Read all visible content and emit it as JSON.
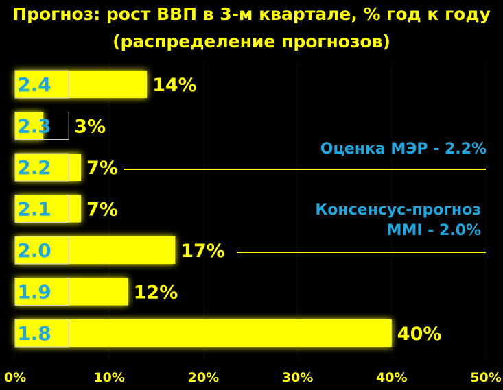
{
  "colors": {
    "background": "#000000",
    "bar": "#ffff00",
    "glow": "#ffff00",
    "category_label": "#1fa8e0",
    "value_label": "#ffff00",
    "annotation": "#1fa8e0",
    "reference_line": "#ffff00",
    "grid": "#2a2a2a"
  },
  "chart_data": {
    "type": "bar",
    "orientation": "horizontal",
    "title": "Прогноз: рост ВВП в 3-м квартале, % год к году",
    "subtitle": "(распределение прогнозов)",
    "categories": [
      "2.4",
      "2.3",
      "2.2",
      "2.1",
      "2.0",
      "1.9",
      "1.8"
    ],
    "values": [
      14,
      3,
      7,
      7,
      17,
      12,
      40
    ],
    "value_labels": [
      "14%",
      "3%",
      "7%",
      "7%",
      "17%",
      "12%",
      "40%"
    ],
    "xlim": [
      0,
      50
    ],
    "xticks": [
      0,
      10,
      20,
      30,
      40,
      50
    ],
    "xtick_labels": [
      "0%",
      "10%",
      "20%",
      "30%",
      "40%",
      "50%"
    ],
    "grid": "vertical dotted",
    "annotations": [
      {
        "line1": "Оценка МЭР - 2.2%",
        "line2": "",
        "category": "2.2"
      },
      {
        "line1": "Консенсус-прогноз",
        "line2": "MMI - 2.0%",
        "category": "2.0"
      }
    ]
  }
}
